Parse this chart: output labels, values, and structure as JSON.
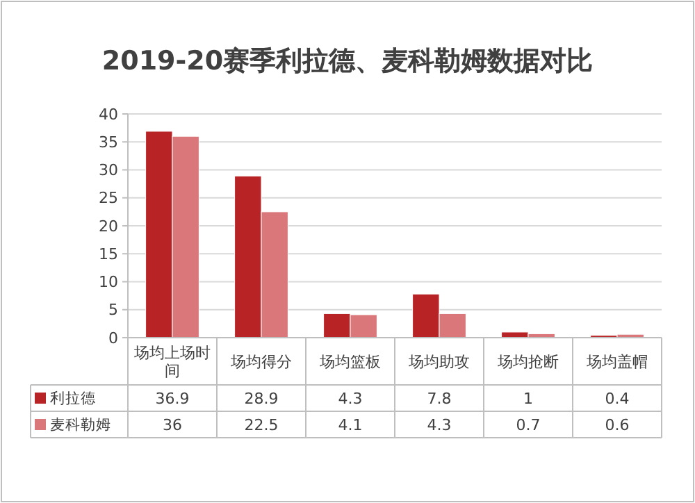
{
  "chart_data": {
    "type": "bar",
    "title": "2019-20赛季利拉德、麦科勒姆数据对比",
    "categories": [
      "场均上场时间",
      "场均得分",
      "场均篮板",
      "场均助攻",
      "场均抢断",
      "场均盖帽"
    ],
    "series": [
      {
        "name": "利拉德",
        "color": "#b82325",
        "values": [
          36.9,
          28.9,
          4.3,
          7.8,
          1,
          0.4
        ]
      },
      {
        "name": "麦科勒姆",
        "color": "#d9777a",
        "values": [
          36,
          22.5,
          4.1,
          4.3,
          0.7,
          0.6
        ]
      }
    ],
    "ylim": [
      0,
      40
    ],
    "yticks": [
      0,
      5,
      10,
      15,
      20,
      25,
      30,
      35,
      40
    ],
    "grid": "y",
    "data_labels": true,
    "legend": "bottom left"
  }
}
